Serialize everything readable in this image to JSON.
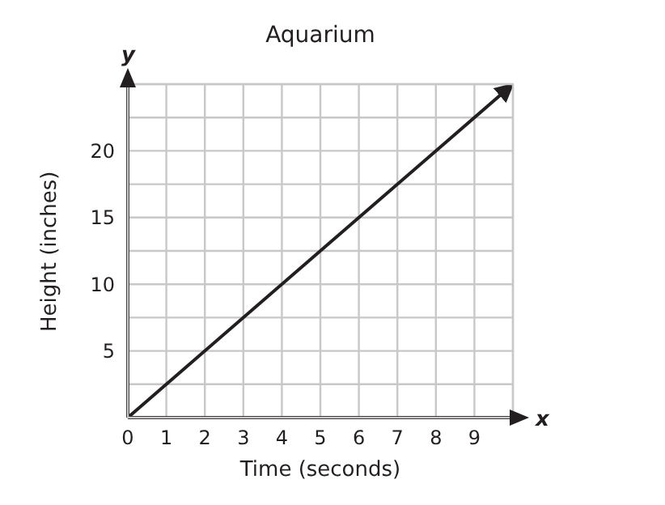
{
  "chart_data": {
    "type": "line",
    "title": "Aquarium",
    "xlabel": "Time (seconds)",
    "ylabel": "Height (inches)",
    "annotations": [
      "x",
      "y"
    ],
    "x": [
      0,
      10
    ],
    "series": [
      {
        "color": "#231f20",
        "values": [
          0,
          25
        ]
      }
    ],
    "xlim": [
      0,
      10
    ],
    "xticks": [
      0,
      1,
      2,
      3,
      4,
      5,
      6,
      7,
      8,
      9
    ],
    "ylim": [
      0,
      25
    ],
    "yticks": [
      {
        "value": 0,
        "label": null
      },
      {
        "value": 2.5,
        "label": null
      },
      5,
      {
        "value": 7.5,
        "label": null
      },
      10,
      {
        "value": 12.5,
        "label": null
      },
      15,
      {
        "value": 17.5,
        "label": null
      },
      20,
      {
        "value": 22.5,
        "label": null
      },
      {
        "value": 25,
        "label": null
      }
    ],
    "grid": true,
    "marker": "none",
    "line_style": "solid"
  }
}
